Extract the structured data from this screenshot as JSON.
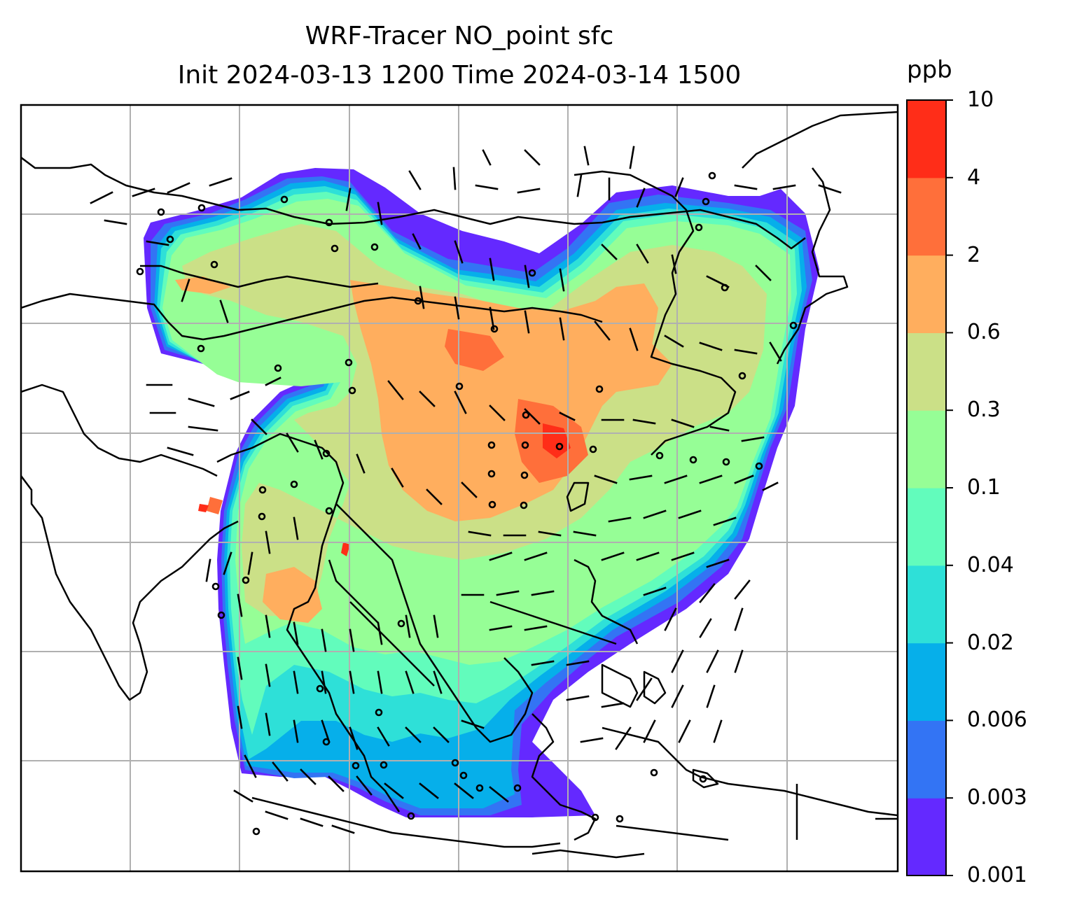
{
  "title": {
    "line1": "WRF-Tracer NO_point sfc",
    "line2": "Init 2024-03-13 1200 Time 2024-03-14 1500"
  },
  "colorbar": {
    "unit": "ppb",
    "ticks": [
      "0.001",
      "0.003",
      "0.006",
      "0.02",
      "0.04",
      "0.1",
      "0.3",
      "0.6",
      "2",
      "4",
      "10"
    ],
    "colors": [
      "#6429ff",
      "#3374f4",
      "#06afea",
      "#2ee0d8",
      "#62fcbc",
      "#96fe96",
      "#cbe087",
      "#ffae5e",
      "#ff6f3a",
      "#ff2d18"
    ]
  },
  "map": {
    "frame": {
      "gridlines": true,
      "gridline_color": "#b0b0b0",
      "coastline_color": "#000000"
    },
    "field_levels": [
      "0.001-0.003",
      "0.003-0.006",
      "0.006-0.02",
      "0.02-0.04",
      "0.04-0.1",
      "0.1-0.3",
      "0.3-0.6",
      "0.6-2",
      "2-4",
      "4-10"
    ]
  }
}
